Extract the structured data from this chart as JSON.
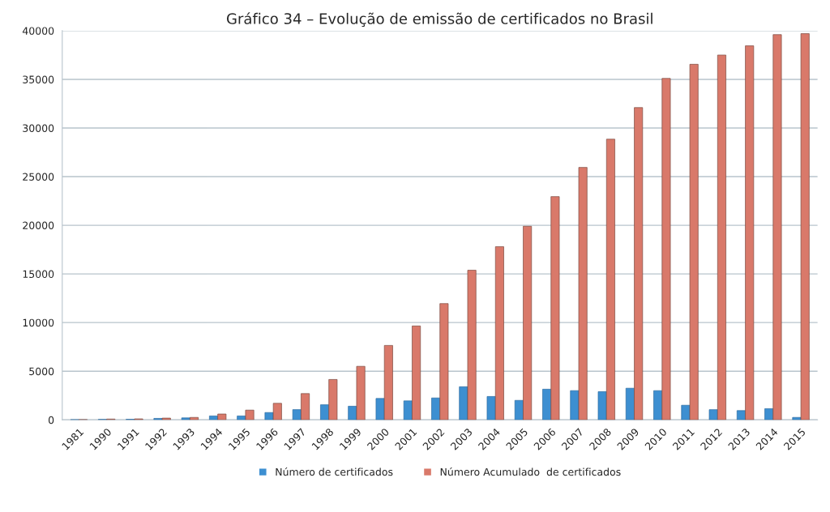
{
  "chart_data": {
    "type": "bar",
    "title": "Gráfico 34 – Evolução de emissão de certificados no Brasil",
    "categories": [
      "1981",
      "1990",
      "1991",
      "1992",
      "1993",
      "1994",
      "1995",
      "1996",
      "1997",
      "1998",
      "1999",
      "2000",
      "2001",
      "2002",
      "2003",
      "2004",
      "2005",
      "2006",
      "2007",
      "2008",
      "2009",
      "2010",
      "2011",
      "2012",
      "2013",
      "2014",
      "2015"
    ],
    "series": [
      {
        "name": "Número de certificados",
        "color": "#3d8fd1",
        "values": [
          20,
          50,
          60,
          150,
          200,
          400,
          400,
          750,
          1050,
          1550,
          1400,
          2200,
          1950,
          2250,
          3400,
          2400,
          2000,
          3150,
          3000,
          2900,
          3250,
          3000,
          1500,
          1050,
          950,
          1150,
          250
        ]
      },
      {
        "name": "Número Acumulado  de certificados",
        "color": "#d9796a",
        "values": [
          30,
          80,
          100,
          180,
          250,
          600,
          1000,
          1700,
          2700,
          4150,
          5500,
          7650,
          9650,
          11950,
          15380,
          17800,
          19900,
          22950,
          25950,
          28850,
          32100,
          35100,
          36550,
          37500,
          38450,
          39600,
          39700
        ]
      }
    ],
    "ylim": [
      0,
      40000
    ],
    "yticks": [
      0,
      5000,
      10000,
      15000,
      20000,
      25000,
      30000,
      35000,
      40000
    ],
    "grid": "y",
    "legend": "bottom"
  }
}
